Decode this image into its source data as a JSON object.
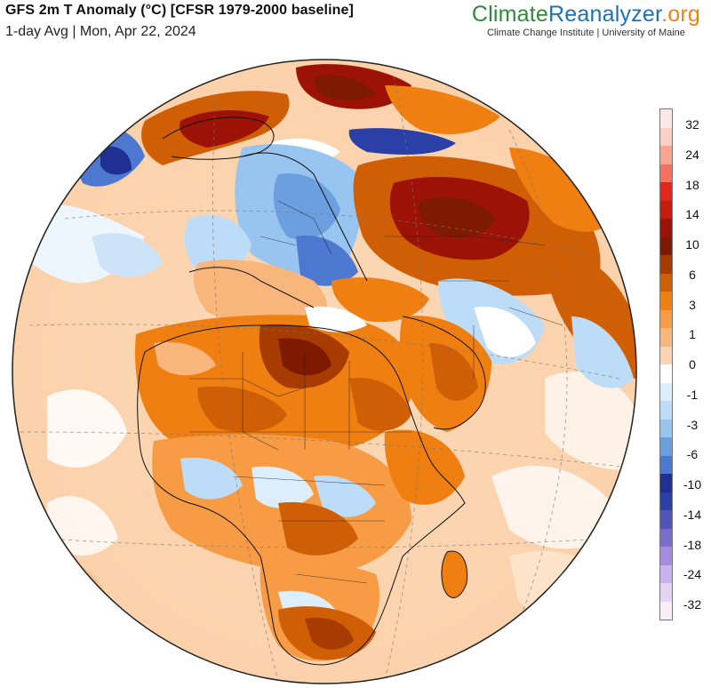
{
  "header": {
    "title": "GFS 2m T Anomaly (°C) [CFSR 1979-2000 baseline]",
    "subtitle": "1-day Avg | Mon, Apr 22, 2024"
  },
  "brand": {
    "part1": "Climate",
    "part2": "Reanalyzer",
    "part3": ".org",
    "tagline": "Climate Change Institute | University of Maine",
    "colors": {
      "green": "#2e8b3a",
      "blue": "#1a73b8",
      "orange": "#e8861a"
    }
  },
  "legend": {
    "colors": [
      "#fde8e8",
      "#fcd0c4",
      "#f9a58f",
      "#f4705f",
      "#e3261b",
      "#c71b10",
      "#9c1206",
      "#7d1a00",
      "#a63c02",
      "#cf5e05",
      "#ef7f10",
      "#f79b44",
      "#f8b67c",
      "#fbd5b1",
      "#ffffff",
      "#dceefb",
      "#bcdcf7",
      "#97c5f0",
      "#6c9fe0",
      "#4c78cf",
      "#1f2f92",
      "#2b40a6",
      "#4f56b8",
      "#7a6ecb",
      "#a48be0",
      "#c7b1ee",
      "#e4d3f5",
      "#f7eef8"
    ],
    "ticks": [
      "32",
      "24",
      "18",
      "14",
      "10",
      "6",
      "3",
      "1",
      "0",
      "-1",
      "-3",
      "-6",
      "-10",
      "-14",
      "-18",
      "-24",
      "-32"
    ]
  }
}
